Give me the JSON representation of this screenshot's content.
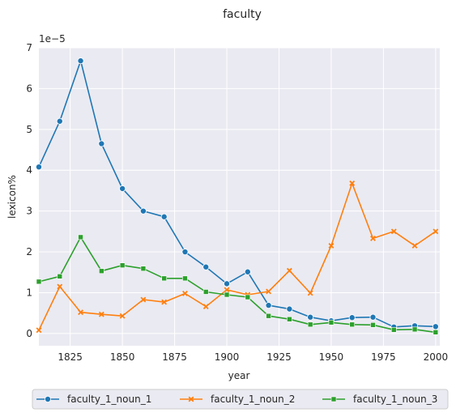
{
  "chart_data": {
    "type": "line",
    "title": "faculty",
    "xlabel": "year",
    "ylabel": "lexicon%",
    "y_scale_label": "1e−5",
    "xlim": [
      1810,
      2002
    ],
    "ylim": [
      -0.3,
      7.0
    ],
    "x_ticks": [
      1825,
      1850,
      1875,
      1900,
      1925,
      1950,
      1975,
      2000
    ],
    "y_ticks": [
      0,
      1,
      2,
      3,
      4,
      5,
      6,
      7
    ],
    "grid": true,
    "legend_position": "bottom",
    "x": [
      1810,
      1820,
      1830,
      1840,
      1850,
      1860,
      1870,
      1880,
      1890,
      1900,
      1910,
      1920,
      1930,
      1940,
      1950,
      1960,
      1970,
      1980,
      1990,
      2000
    ],
    "series": [
      {
        "name": "faculty_1_noun_1",
        "color": "#1f77b4",
        "marker": "circle",
        "values": [
          4.08,
          5.2,
          6.68,
          4.65,
          3.55,
          3.0,
          2.86,
          2.0,
          1.63,
          1.22,
          1.51,
          0.69,
          0.6,
          0.4,
          0.31,
          0.39,
          0.4,
          0.16,
          0.19,
          0.17
        ]
      },
      {
        "name": "faculty_1_noun_2",
        "color": "#ff7f0e",
        "marker": "x",
        "values": [
          0.08,
          1.15,
          0.52,
          0.47,
          0.43,
          0.83,
          0.77,
          0.98,
          0.66,
          1.07,
          0.95,
          1.03,
          1.54,
          0.99,
          2.15,
          3.68,
          2.33,
          2.5,
          2.15,
          2.5
        ]
      },
      {
        "name": "faculty_1_noun_3",
        "color": "#2ca02c",
        "marker": "square",
        "values": [
          1.27,
          1.4,
          2.36,
          1.53,
          1.67,
          1.59,
          1.35,
          1.35,
          1.02,
          0.95,
          0.89,
          0.43,
          0.35,
          0.22,
          0.27,
          0.22,
          0.21,
          0.09,
          0.1,
          0.03
        ]
      }
    ]
  }
}
